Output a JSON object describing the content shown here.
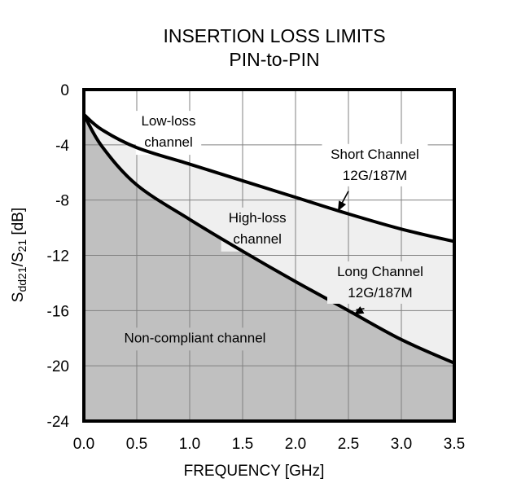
{
  "chart_data": {
    "type": "area",
    "title": [
      "INSERTION LOSS LIMITS",
      "PIN-to-PIN"
    ],
    "xlabel": "FREQUENCY [GHz]",
    "ylabel": {
      "main": "S",
      "sub1": "dd21",
      "mid": "/S",
      "sub2": "21",
      "unit": " [dB]"
    },
    "xlim": [
      0,
      3.5
    ],
    "ylim": [
      -24,
      0
    ],
    "xticks": [
      0.0,
      0.5,
      1.0,
      1.5,
      2.0,
      2.5,
      3.0,
      3.5
    ],
    "xtick_labels": [
      "0.0",
      "0.5",
      "1.0",
      "1.5",
      "2.0",
      "2.5",
      "3.0",
      "3.5"
    ],
    "yticks": [
      0,
      -4,
      -8,
      -12,
      -16,
      -20,
      -24
    ],
    "ytick_labels": [
      "0",
      "-4",
      "-8",
      "-12",
      "-16",
      "-20",
      "-24"
    ],
    "grid": true,
    "x": [
      0.0,
      0.17,
      0.5,
      1.0,
      1.5,
      2.0,
      2.5,
      3.0,
      3.5
    ],
    "series": [
      {
        "name": "Short Channel 12G/187M",
        "values": [
          -1.8,
          -2.9,
          -4.2,
          -5.4,
          -6.6,
          -7.8,
          -9.0,
          -10.1,
          -11.0
        ]
      },
      {
        "name": "Long Channel 12G/187M",
        "values": [
          -1.8,
          -4.1,
          -6.9,
          -9.4,
          -11.7,
          -13.9,
          -16.0,
          -18.1,
          -19.8
        ]
      }
    ],
    "regions": [
      {
        "name": "Low-loss channel",
        "lines": [
          "Low-loss",
          "channel"
        ],
        "color": "#ffffff"
      },
      {
        "name": "High-loss channel",
        "lines": [
          "High-loss",
          "channel"
        ],
        "color": "#efefef"
      },
      {
        "name": "Non-compliant channel",
        "lines": [
          "Non-compliant channel"
        ],
        "color": "#c0c0c0"
      }
    ],
    "annotations": [
      {
        "lines": [
          "Short Channel",
          "12G/187M"
        ],
        "x": 2.75,
        "y": -5.0,
        "arrow_to": [
          2.4,
          -8.8
        ]
      },
      {
        "lines": [
          "Long Channel",
          "12G/187M"
        ],
        "x": 2.8,
        "y": -13.5,
        "arrow_to": [
          2.55,
          -16.3
        ]
      }
    ]
  }
}
